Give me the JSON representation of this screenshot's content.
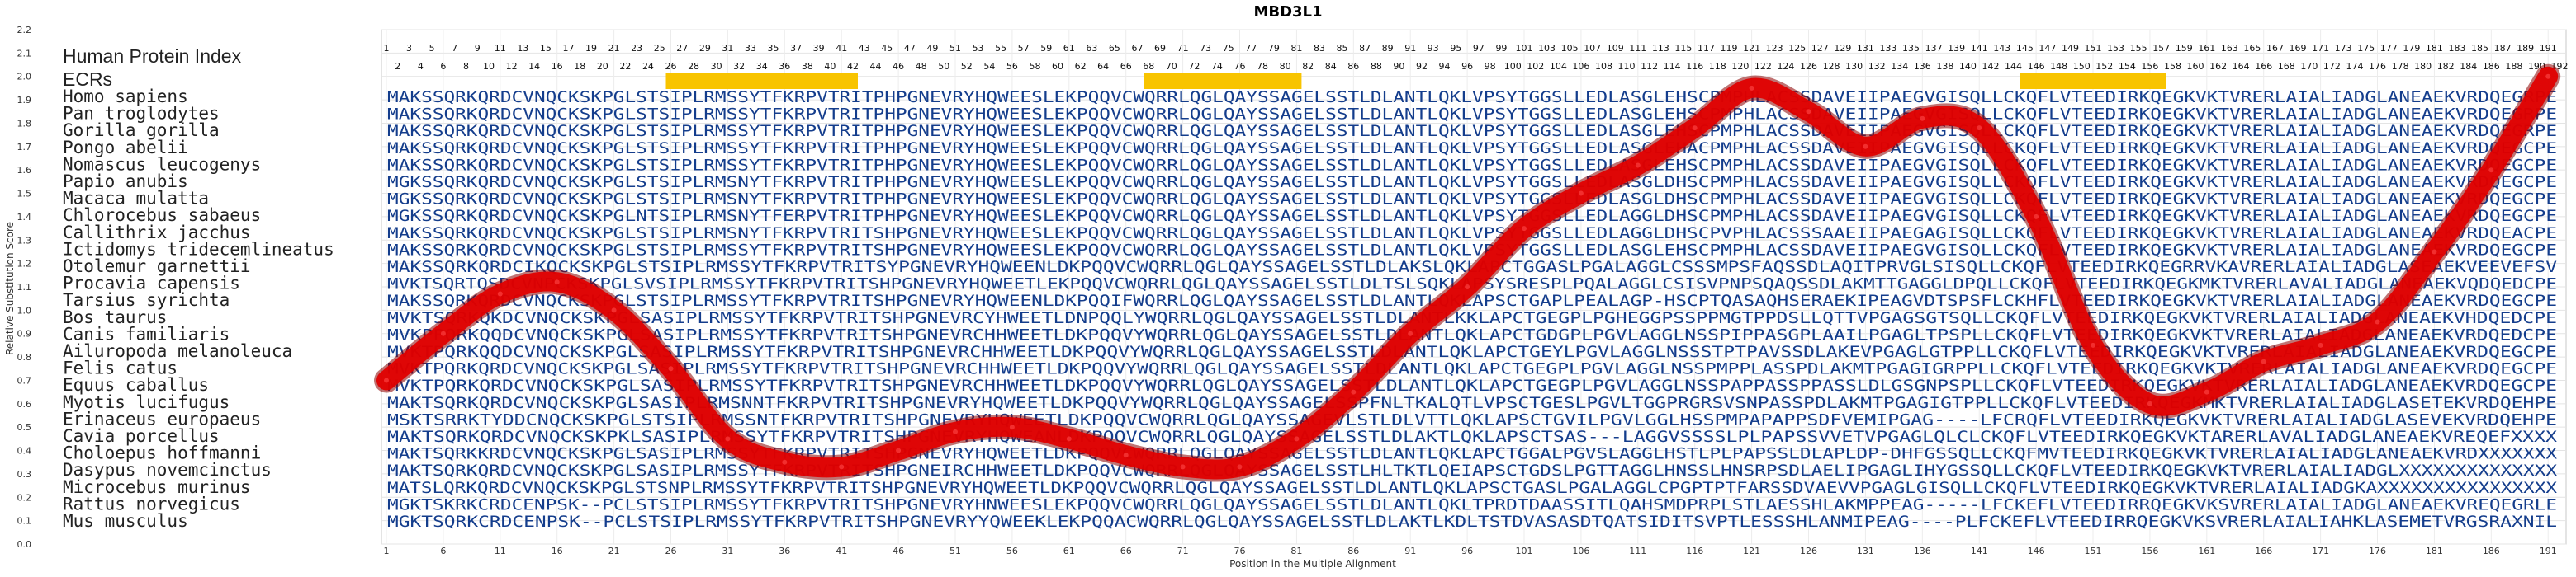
{
  "chart_data": {
    "type": "line",
    "title": "MBD3L1",
    "xlabel": "Position in the Multiple Alignment",
    "ylabel": "Relative Substitution Score",
    "ylim": [
      0.0,
      2.2
    ],
    "xlim": [
      1,
      192
    ],
    "grid": true,
    "header_label": "Human Protein Index",
    "ecr_label": "ECRs",
    "ecr_regions": [
      [
        26,
        42
      ],
      [
        68,
        81
      ],
      [
        145,
        157
      ]
    ],
    "x_ticks": [
      "1",
      "6",
      "11",
      "16",
      "21",
      "26",
      "31",
      "36",
      "41",
      "46",
      "51",
      "56",
      "61",
      "66",
      "71",
      "76",
      "81",
      "86",
      "91",
      "96",
      "101",
      "106",
      "111",
      "116",
      "121",
      "126",
      "131",
      "136",
      "141",
      "146",
      "151",
      "156",
      "161",
      "166",
      "171",
      "176",
      "181",
      "186",
      "191"
    ],
    "y_ticks": [
      "0.0",
      "0.1",
      "0.2",
      "0.3",
      "0.4",
      "0.5",
      "0.6",
      "0.7",
      "0.8",
      "0.9",
      "1.0",
      "1.1",
      "1.2",
      "1.3",
      "1.4",
      "1.5",
      "1.6",
      "1.7",
      "1.8",
      "1.9",
      "2.0",
      "2.1",
      "2.2"
    ],
    "hpi_odd": [
      "1",
      "3",
      "5",
      "7",
      "9",
      "11",
      "13",
      "15",
      "17",
      "19",
      "21",
      "23",
      "25",
      "27",
      "29",
      "31",
      "33",
      "35",
      "37",
      "39",
      "41",
      "43",
      "45",
      "47",
      "49",
      "51",
      "53",
      "55",
      "57",
      "59",
      "61",
      "63",
      "65",
      "67",
      "69",
      "71",
      "73",
      "75",
      "77",
      "79",
      "81",
      "83",
      "85",
      "87",
      "89",
      "91",
      "93",
      "95",
      "97",
      "99",
      "101",
      "103",
      "105",
      "107",
      "109",
      "111",
      "113",
      "115",
      "117",
      "119",
      "121",
      "123",
      "125",
      "127",
      "129",
      "131",
      "133",
      "135",
      "137",
      "139",
      "141",
      "143",
      "145",
      "147",
      "149",
      "151",
      "153",
      "155",
      "157",
      "159",
      "161",
      "163",
      "165",
      "167",
      "169",
      "171",
      "173",
      "175",
      "177",
      "179",
      "181",
      "183",
      "185",
      "187",
      "189",
      "191"
    ],
    "hpi_even": [
      "2",
      "4",
      "6",
      "8",
      "10",
      "12",
      "14",
      "16",
      "18",
      "20",
      "22",
      "24",
      "26",
      "28",
      "30",
      "32",
      "34",
      "36",
      "38",
      "40",
      "42",
      "44",
      "46",
      "48",
      "50",
      "52",
      "54",
      "56",
      "58",
      "60",
      "62",
      "64",
      "66",
      "68",
      "70",
      "72",
      "74",
      "76",
      "78",
      "80",
      "82",
      "84",
      "86",
      "88",
      "90",
      "92",
      "94",
      "96",
      "98",
      "100",
      "102",
      "104",
      "106",
      "108",
      "110",
      "112",
      "114",
      "116",
      "118",
      "120",
      "122",
      "124",
      "126",
      "128",
      "130",
      "132",
      "134",
      "136",
      "138",
      "140",
      "142",
      "144",
      "146",
      "148",
      "150",
      "152",
      "154",
      "156",
      "158",
      "160",
      "162",
      "164",
      "166",
      "168",
      "170",
      "172",
      "174",
      "176",
      "178",
      "180",
      "182",
      "184",
      "186",
      "188",
      "190",
      "192"
    ],
    "series": [
      {
        "x": [
          1,
          6,
          11,
          16,
          21,
          26,
          31,
          36,
          41,
          46,
          51,
          56,
          61,
          66,
          71,
          76,
          81,
          86,
          91,
          96,
          101,
          106,
          111,
          116,
          121,
          126,
          131,
          136,
          141,
          146,
          151,
          156,
          161,
          166,
          171,
          176,
          181,
          186,
          191
        ],
        "values": [
          0.7,
          0.9,
          1.07,
          1.12,
          1.0,
          0.75,
          0.45,
          0.35,
          0.33,
          0.4,
          0.48,
          0.5,
          0.45,
          0.38,
          0.33,
          0.33,
          0.45,
          0.65,
          0.9,
          1.1,
          1.35,
          1.5,
          1.62,
          1.78,
          1.95,
          1.85,
          1.7,
          1.82,
          1.78,
          1.4,
          0.85,
          0.6,
          0.65,
          0.78,
          0.85,
          0.95,
          1.25,
          1.6,
          2.0
        ],
        "color": "#e00000"
      }
    ],
    "sequences": [
      {
        "name": "Homo sapiens",
        "seq": "MAKSSQRKQRDCVNQCKSKPGLSTSIPLRMSSYTFKRPVTRITPHPGNEVRYHQWEESLEKPQQVCWQRRLQGLQAYSSAGELSSTLDLANTLQKLVPSYTGGSLLEDLASGLEHSCPMPHLACSSDAVEIIPAEGVGISQLLCKQFLVTEEDIRKQEGKVKTVRERLAIALIADGLANEAEKVRDQEGRPE"
      },
      {
        "name": "Pan troglodytes",
        "seq": "MAKSSQRKQRDCVNQCKSKPGLSTSIPLRMSSYTFKRPVTRITPHPGNEVRYHQWEESLEKPQQVCWQRRLQGLQAYSSAGELSSTLDLANTLQKLVPSYTGGSLLEDLASGLEHSCPMPHLACSSDAVEIIPAEGVGISQLLCKQFLVTEEDIRKQEGKVKTVRERLAIALIADGLANEAEKVRDQEGRPE"
      },
      {
        "name": "Gorilla gorilla",
        "seq": "MAKSSQRKQRDCVNQCKSKPGLSTSIPLRMSSYTFKRPVTRITPHPGNEVRYHQWEESLEKPQQVCWQRRLQGLQAYSSAGELSSTLDLANTLQKLVPSYTGGSLLEDLASGLEHSCPMPHLACSSDAVEIIPAEGVGISQLLCKQFLVTEEDIRKQEGKVKTVRERLAIALIADGLANEAEKVRDQEGRPE"
      },
      {
        "name": "Pongo abelii",
        "seq": "MAKSSQRKQRDCVNQCKSKPGLSTSIPLRMSSYTFKRPVTRITPHPGNEVRYHQWEESLEKPQQVCWQRRLQGLQAYSSAGELSSTLDLANTLQKLVPSYTGGSLLEDLASGLEHACPMPHLACSSDAVEIIPAEGVGISQLLCKQFLVTEEDIRKQEGKVKTVRERLAIALIADGLANEAEKVRDQEGCPE"
      },
      {
        "name": "Nomascus leucogenys",
        "seq": "MAKSSQRKQRDCVNQCKSKPGLSTSIPLRMSSYTFKRPVTRITPHPGNEVRYHQWEESLEKPQQVCWQRRLQGLQAYSSAGELSSTLDLANTLQKLVPSYTGGSLLEDLASGLEHSCPMPHLACSSDAVEIIPAEGVGISQLLCKQFLVTEEDIRKQEGKVKTVRERLAIALIADGLANEAEKVRDQEGCPE"
      },
      {
        "name": "Papio anubis",
        "seq": "MGKSSQRKQRDCVNQCKSKPGLSTSIPLRMSNYTFKRPVTRITPHPGNEVRYHQWEESLEKPQQVCWQRRLQGLQAYSSAGELSSTLDLANTLQKLVPSYTGGSLLEDLASGLDHSCPMPHLACSSDAVEIIPAEGVGISQLLCKQFLVTEEDIRKQEGKVKTVRERLAIALIADGLANEAEKVRDQEGCPE"
      },
      {
        "name": "Macaca mulatta",
        "seq": "MGKSSQRKQRDCVNQCKSKPGLSTSIPLRMSNYTFKRPVTRITPHPGNEVRYHQWEESLEKPQQVCWQRRLQGLQAYSSAGELSSTLDLANTLQKLVPSYTGGSLLEDLASGLDHSCPMPHLACSSDAVEIIPAEGVGISQLLCKQFLVTEEDIRKQEGKVKTVRERLAIALIADGLANEAEKVRDQEGCPE"
      },
      {
        "name": "Chlorocebus sabaeus",
        "seq": "MGKSSQRKQRDCVNQCKSKPGLNTSIPLRMSNYTFERPVTRITPHPGNEVRYHQWEESLEKPQQVCWQRRLQGLQAYSSAGELSSTLDLANTLQKLVPSYTGGSLLEDLAGGLDHSCPMPHLACSSDAVEIIPAEGVGISQLLCKQFLVTEEDIRKQEGKVKTVRERLAIALIADGLANEAEKVRDQEGCPE"
      },
      {
        "name": "Callithrix jacchus",
        "seq": "MAKSSQRKQRDCVNQCKSKPGLSTSIPLRMSNYTFKRPVTRITSHPGNEVRYHQWEESLEKPQQVCWQRRLQGLQAYSSAGELSSTLDLANTLQKLVPSYTGGSLLEDLAGGLDHSCPVPHLACSSSAAEIIPAEGAGISQLLCKQFLVTEEDIRKQEGKVKTVRERLAIALIADGLANEAEKVRDQEACPE"
      },
      {
        "name": "Ictidomys tridecemlineatus",
        "seq": "MAKSSQRKQRDCVNQCKSKPGLSTSIPLRMSSYTFKRPVTRITSHPGNEVRYHQWEESLEKPQQVCWQRRLQGLQAYSSAGELSSTLDLANTLQKLVPSYTGGSLLEDLASGLEHSCPMPHLACSSDAVEIIPAEGVGISQLLCKQFLVTEEDIRKQEGKVKTVRERLAIALIADGLANEAEKVRDQEGCPE"
      },
      {
        "name": "Otolemur garnettii",
        "seq": "MAKSSQRKQRDCIKQCKSKPGLSTSIPLRMSSYTFKRPVTRITSYPGNEVRYHQWEENLDKPQQVCWQRRLQGLQAYSSAGELSSTLDLAKSLQKLAPCTGGASLPGALAGGLCSSSMPSFAQSSDLAQITPRVGLSISQLLCKQFLVTEEDIRKQEGRRVKAVRERLAIALIADGLASEAEKVEEVEFSV"
      },
      {
        "name": "Procavia capensis",
        "seq": "MVKTSQRTQSDCVNPCKSKPGLSVSIPLRMSSYTFKRPVTRITSHPGNEVRYHQWEETLEKPQQVCWQRRLQGLQAYSSAGELSSTLDLTSLSQKLAPSYSRESPLPQALAGGLCSISVPNPSQAQSSDLAKMTTGAGGLDPQLLCKQFLVTEEDIRKQEGKMKTVRERLAVALIADGLANEAEKVQDQEDCPE"
      },
      {
        "name": "Tarsius syrichta",
        "seq": "MAKSSQRKQRDCVNQCKSKPGLSTSIPLRMSSYTFKRPVTRITSHPGNEVRYHQWEENLDKPQQIFWQRRLQGLQAYSSAGELSSTLDLANTLQKLAPSCTGAPLPEALAGP-HSCPTQASAQHSERAEKIPEAGVDTSPSFLCKHFLVTEEDIRKQEGKVKTVRERLAIALIADGLANEAEKVRDQEGCPE"
      },
      {
        "name": "Bos taurus",
        "seq": "MVKTSQRKQKDCVNQCKSKPGLSASIPLRMSSYTFKRPVTRITSHPGNEVRCYHWEETLDNPQQLYWQRRLQGLQAYSSAGELSSTLDLANTLKKLAPCTGEGPLPGHEGGPSSPPMGTPPDSLLQTTVPGAGSGTSQLLCKQFLVTEEDIRKQEGKVKTVRERLAIALIADGLANEAEKVHDQEDCPE"
      },
      {
        "name": "Canis familiaris",
        "seq": "MVKPPQRKQQDCVNQCKSKPGLSASIPLRMSSYTFKRPVTRITSHPGNEVRCHHWEETLDKPQQVYWQRRLQGLQAYSSAGELSSTLDLANTLQKLAPCTGDGPLPGVLAGGLNSSPIPPASGPLAAILPGAGLTPSPLLCKQFLVTEEDIRKQEGKVKTVRERLAIALIADGLANEAEKVRDQEDCPE"
      },
      {
        "name": "Ailuropoda melanoleuca",
        "seq": "MVKTPQRKQQDCVNQCKSKPGLSASIPLRMSSYTFKRPVTRITSHPGNEVRCHHWEETLDKPQQVYWQRRLQGLQAYSSAGELSSTLDLANTLQKLAPCTGEYLPGVLAGGLNSSSTPTPAVSSDLAKEVPGAGLGTPPLLCKQFLVTEEDIRKQEGKVKTVRERLAIALIADGLANEAEKVRDQEGCPE"
      },
      {
        "name": "Felis catus",
        "seq": "MVKTPQRKQRDCVNQCKSKPGLSASIPLRMSSYTFKRPVTRITSHPGNEVRCHHWEETLDKPQQVYWQRRLQGLQAYSSAGELSSTLDLANTLQKLAPCTGEGPLPGVLAGGLNSSPMPPLASSPDLAKMTPGAGIGRPPLLCKQFLVTEEDIRKQEGKVKTVRERLAIALIADGLANEAEKVRDQEGCPE"
      },
      {
        "name": "Equus caballus",
        "seq": "MVKTPQRKQRDCVNQCKSKPGLSASIPLRMSSYTFKRPVTRITSHPGNEVRCHHWEETLDKPQQVYWQRRLQGLQAYSSAGELSSTLDLANTLQKLAPCTGEGPLPGVLAGGLNSSPAPPASSPPASSLDLGSGNPSPLLCKQFLVTEEDIRKQEGKVKTVRERLAIALIADGLANEAEKVRDQEGCPE"
      },
      {
        "name": "Myotis lucifugus",
        "seq": "MAKTSQRKQRDCVNQCKSKPGLSASIPLRMSNNTFKRPVTRITSHPGNEVRYHQWEETLDKPQQVYWQRRLQGLQAYSSAGELSSPFNLTKALQTLVPSCTGESLPGVLTGGPRGRSVSNPASSPDLAKMTPGAGIGTPPLLCKQFLVTEEDIRKQEGKMKTVRERLAIALIADGLASETEKVRDQEHPE"
      },
      {
        "name": "Erinaceus europaeus",
        "seq": "MSKTSRRKTYDDCNQCKSKPGLSTSIPLRMSSNTFKRPVTRITSHPGNEVRYHQWEETLDKPQQVCWQRRLQGLQAYSSAGEVLSTLDLVTTLQKLAPSCTGVILPGVLGGLHSSPMPAPAPPSDFVEMIPGAG----LFCRQFLVTEEDIRKQEGKVKTVRERLAIALIADGLASEVEKVRDQEHPE"
      },
      {
        "name": "Cavia porcellus",
        "seq": "MAKTSQRKQRDCVNQCKSKPKLSASIPLRMSSYTFKRPVTRITSHPGNEVRYHQWEANLDKPQQVCWQRRLQGLQAYSSAGELSSTLDLAKTLQKLAPSCTSAS---LAGGVSSSSLPLPAPSSVVETVPGAGLQLCLCKQFLVTEEDIRKQEGKVKTARERLAVALIADGLANEAEKVREQEFXXXX"
      },
      {
        "name": "Choloepus hoffmanni",
        "seq": "MAKTSQRKKRDCVNQCKSKPGLSASIPLRMSSYTFKRPVTRITSHPGNEVRYHQWEETLDKPQQVCWQRRLQGLQAYSSAGELSSTLDLANTLQKLAPCTGGALPGVSLAGGLHSTLPLPAPSSLDLAPLDP-DHFGSSQLLCKQFMVTEEDIRKQEGKVKTVRERLAIALIADGLANEAEKVRDXXXXXXX"
      },
      {
        "name": "Dasypus novemcinctus",
        "seq": "MAKTSQRKQRDCVNQCKSKPGLSASIPLRMSSYTFKRPVTRITSHPGNEIRCHHWEETLDKPQQVCWQRRLQGLQAYSSAGELSSTLHLTKTLQEIAPSCTGDSLPGTTAGGLHNSSLHNSRPSDLAELIPGAGLIHYGSSQLLCKQFLVTEEDIRKQEGKVKTVRERLAIALIADGLXXXXXXXXXXXXXX"
      },
      {
        "name": "Microcebus murinus",
        "seq": "MATSLQRKQRDCVNQCKSKPGLSTSNPLRMSSYTFKRPVTRITSHPGNEVRYHQWEETLDKPQQVCWQRRLQGLQAYSSAGELSSTLDLANTLQKLAPSCTGASLPGALAGGLCPGPTPTFARSSDVAEVVPGAGLGISQLLCKQFLVTEEDIRKQEGKVKTVRERLAIALIADGKAXXXXXXXXXXXXXXXX"
      },
      {
        "name": "Rattus norvegicus",
        "seq": "MGKTSKRKCRDCENPSK--PCLSTSIPLRMSSYTFKRPVTRITSHPGNEVRYHNWEESLEKPQQVCWQRRLQGLQAYSSAGELSSTLDLANTLQKLTPRDTDAASSITLQAHSMDPRPLSTLAESSHLAKMPPEAG-----LFCKEFLVTEEDIRRQEGKVKSVRERLAIALIADGLANEAEKVREQEGRLE"
      },
      {
        "name": "Mus musculus",
        "seq": "MGKTSQRKCRDCENPSK--PCLSTSIPLRMSSYTFKRPVTRITSHPGNEVRYYQWEEKLEKPQQACWQRRLQGLQAYSSAGELSSTLDLAKTLKDLTSTDVASASDTQATSIDITSVPTLESSSHLANMIPEAG----PLFCKEFLVTEEDIRRQEGKVKSVRERLAIALIAHKLASEMETVRGSRAXNIL"
      }
    ]
  }
}
